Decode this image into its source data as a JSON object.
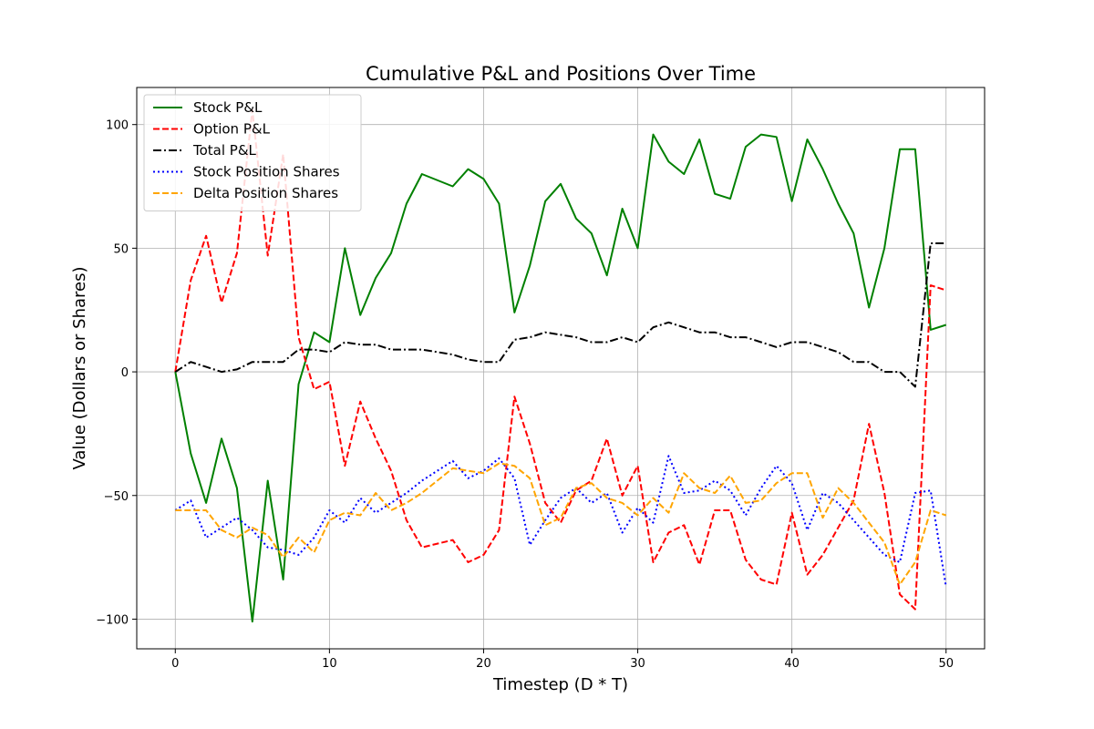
{
  "chart_data": {
    "type": "line",
    "title": "Cumulative P&L and Positions Over Time",
    "xlabel": "Timestep (D * T)",
    "ylabel": "Value (Dollars or Shares)",
    "xlim": [
      -2.5,
      52.5
    ],
    "ylim": [
      -112,
      115
    ],
    "xticks": [
      0,
      10,
      20,
      30,
      40,
      50
    ],
    "yticks": [
      -100,
      -50,
      0,
      50,
      100
    ],
    "grid": true,
    "legend_position": "top-left",
    "x": [
      0,
      1,
      2,
      3,
      4,
      5,
      6,
      7,
      8,
      9,
      10,
      11,
      12,
      13,
      14,
      15,
      16,
      17,
      18,
      19,
      20,
      21,
      22,
      23,
      24,
      25,
      26,
      27,
      28,
      29,
      30,
      31,
      32,
      33,
      34,
      35,
      36,
      37,
      38,
      39,
      40,
      41,
      42,
      43,
      44,
      45,
      46,
      47,
      48,
      49,
      50
    ],
    "series": [
      {
        "name": "Stock P&L",
        "color": "#008000",
        "dash": "solid",
        "values": [
          0,
          -33,
          -53,
          -27,
          -47,
          -101,
          -44,
          -84,
          -5,
          16,
          12,
          50,
          23,
          38,
          48,
          68,
          80,
          null,
          75,
          82,
          78,
          68,
          24,
          43,
          69,
          76,
          62,
          56,
          39,
          66,
          50,
          96,
          85,
          80,
          94,
          72,
          70,
          91,
          96,
          95,
          69,
          94,
          82,
          68,
          56,
          26,
          50,
          90,
          90,
          17,
          19
        ]
      },
      {
        "name": "Option P&L",
        "color": "#ff0000",
        "dash": "dashed",
        "values": [
          0,
          37,
          55,
          28,
          48,
          106,
          47,
          88,
          14,
          -7,
          -4,
          -38,
          -12,
          -27,
          -40,
          -60,
          -71,
          null,
          -68,
          -77,
          -74,
          -64,
          -10,
          -29,
          -53,
          -61,
          -48,
          -44,
          -27,
          -50,
          -38,
          -77,
          -65,
          -62,
          -78,
          -56,
          -56,
          -76,
          -84,
          -86,
          -57,
          -82,
          -74,
          -63,
          -52,
          -21,
          -49,
          -90,
          -96,
          35,
          33
        ]
      },
      {
        "name": "Total P&L",
        "color": "#000000",
        "dash": "dashdot",
        "values": [
          0,
          4,
          2,
          0,
          1,
          4,
          4,
          4,
          9,
          9,
          8,
          12,
          11,
          11,
          9,
          9,
          9,
          null,
          7,
          5,
          4,
          4,
          13,
          14,
          16,
          15,
          14,
          12,
          12,
          14,
          12,
          18,
          20,
          18,
          16,
          16,
          14,
          14,
          12,
          10,
          12,
          12,
          10,
          8,
          4,
          4,
          0,
          0,
          -6,
          52,
          52
        ]
      },
      {
        "name": "Stock Position Shares",
        "color": "#0000ff",
        "dash": "dotted",
        "values": [
          -56,
          -52,
          -67,
          -63,
          -59,
          -64,
          -71,
          -72,
          -74,
          -67,
          -56,
          -61,
          -51,
          -57,
          -53,
          -49,
          -44,
          null,
          -36,
          -43,
          -40,
          -35,
          -43,
          -70,
          -60,
          -51,
          -47,
          -53,
          -49,
          -65,
          -55,
          -61,
          -34,
          -49,
          -48,
          -44,
          -48,
          -58,
          -47,
          -38,
          -45,
          -64,
          -49,
          -53,
          -60,
          -67,
          -74,
          -77,
          -49,
          -48,
          -87
        ]
      },
      {
        "name": "Delta Position Shares",
        "color": "#ffa500",
        "dash": "dashed",
        "values": [
          -56,
          -56,
          -56,
          -64,
          -67,
          -63,
          -66,
          -75,
          -67,
          -73,
          -60,
          -57,
          -58,
          -49,
          -56,
          -53,
          -49,
          null,
          -39,
          -40,
          -41,
          -37,
          -38,
          -43,
          -62,
          -59,
          -47,
          -45,
          -51,
          -53,
          -58,
          -51,
          -57,
          -41,
          -47,
          -49,
          -42,
          -53,
          -52,
          -45,
          -41,
          -41,
          -59,
          -47,
          -53,
          -61,
          -69,
          -86,
          -77,
          -56,
          -58
        ]
      }
    ]
  }
}
